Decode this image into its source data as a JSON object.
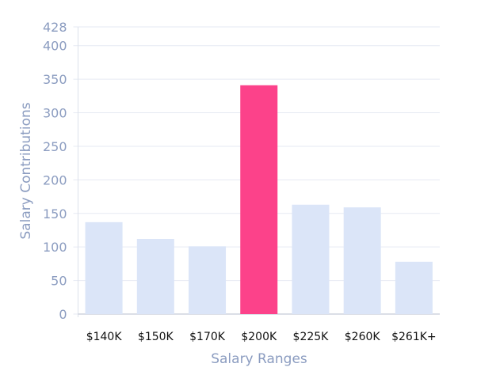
{
  "chart_data": {
    "type": "bar",
    "title": "",
    "xlabel": "Salary Ranges",
    "ylabel": "Salary Contributions",
    "categories": [
      "$140K",
      "$150K",
      "$170K",
      "$200K",
      "$225K",
      "$260K",
      "$261K+"
    ],
    "values": [
      137,
      112,
      101,
      341,
      163,
      159,
      78
    ],
    "ylim": [
      0,
      428
    ],
    "yticks": [
      0,
      50,
      100,
      150,
      200,
      250,
      300,
      350,
      400,
      428
    ],
    "grid": true,
    "highlight_index": 3,
    "colors": {
      "bar": "#dbe5f8",
      "highlight": "#fc428a",
      "grid": "#e6eaf3",
      "axis_text": "#8b9cc0"
    }
  }
}
